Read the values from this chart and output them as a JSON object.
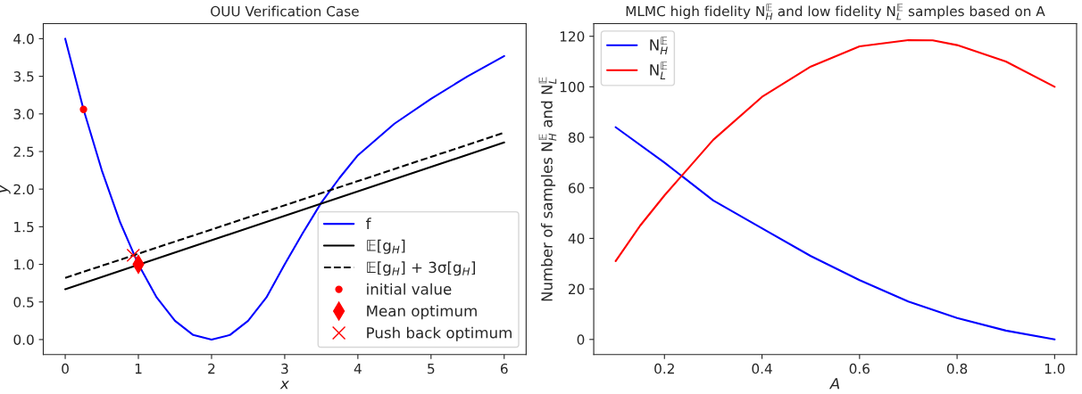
{
  "chart_data": [
    {
      "type": "line",
      "title": "OUU Verification Case",
      "xlabel": "x",
      "ylabel": "y",
      "xlim": [
        -0.3,
        6.3
      ],
      "ylim": [
        -0.2,
        4.2
      ],
      "xticks": [
        0,
        1,
        2,
        3,
        4,
        5,
        6
      ],
      "yticks": [
        {
          "value": 0,
          "label": "0.0"
        },
        0.5,
        {
          "value": 1,
          "label": "1.0"
        },
        1.5,
        {
          "value": 2,
          "label": "2.0"
        },
        2.5,
        {
          "value": 3,
          "label": "3.0"
        },
        3.5,
        {
          "value": 4,
          "label": "4.0"
        }
      ],
      "legend": "bottom right",
      "grid": false,
      "series": [
        {
          "name": "f",
          "color": "#0000ff",
          "line_style": "solid",
          "x": [
            0,
            0.25,
            0.5,
            0.75,
            1,
            1.25,
            1.5,
            1.75,
            2,
            2.25,
            2.5,
            2.75,
            3,
            3.25,
            3.5,
            3.75,
            4,
            4.5,
            5,
            5.5,
            6
          ],
          "values": [
            4,
            3.06,
            2.25,
            1.56,
            1,
            0.56,
            0.25,
            0.06,
            0,
            0.06,
            0.25,
            0.56,
            1.0,
            1.42,
            1.82,
            2.15,
            2.45,
            2.87,
            3.2,
            3.5,
            3.77
          ]
        },
        {
          "name": "𝔼[g$_{H}$]",
          "color": "#000000",
          "line_style": "solid",
          "x": [
            0,
            6
          ],
          "values": [
            0.67,
            2.62
          ]
        },
        {
          "name": "𝔼[g$_{H}$] + 3σ[g$_{H}$]",
          "color": "#000000",
          "line_style": "dashed",
          "x": [
            0,
            6
          ],
          "values": [
            0.82,
            2.75
          ]
        },
        {
          "name": "initial value",
          "color": "#ff0000",
          "type": "scatter",
          "marker": "circle",
          "x": [
            0.25
          ],
          "values": [
            3.06
          ]
        },
        {
          "name": "Mean optimum",
          "color": "#ff0000",
          "type": "scatter",
          "marker": "diamond",
          "x": [
            1.0
          ],
          "values": [
            1.0
          ]
        },
        {
          "name": "Push back optimum",
          "color": "#ff0000",
          "type": "scatter",
          "marker": "cross",
          "x": [
            0.93
          ],
          "values": [
            1.12
          ]
        }
      ]
    },
    {
      "type": "line",
      "title": "MLMC high fidelity N$^{𝔼}$$_{H}$ and low fidelity N$^{𝔼}$$_{L}$ samples based on A",
      "xlabel": "A",
      "ylabel": "Number of samples N$^{𝔼}$$_{H}$ and N$^{𝔼}$$_{L}$",
      "xlim": [
        0.055,
        1.045
      ],
      "ylim": [
        -6,
        125
      ],
      "xticks": [
        0.2,
        0.4,
        0.6,
        0.8,
        {
          "value": 1.0,
          "label": "1.0"
        }
      ],
      "yticks": [
        0,
        20,
        40,
        60,
        80,
        100,
        120
      ],
      "legend": "top left",
      "grid": false,
      "series": [
        {
          "name": "N$^{𝔼}$$_{H}$",
          "color": "#0000ff",
          "line_style": "solid",
          "x": [
            0.1,
            0.2,
            0.3,
            0.4,
            0.5,
            0.6,
            0.7,
            0.8,
            0.9,
            1.0
          ],
          "values": [
            84,
            70,
            55,
            44,
            33,
            23.5,
            15,
            8.5,
            3.5,
            0
          ]
        },
        {
          "name": "N$^{𝔼}$$_{L}$",
          "color": "#ff0000",
          "line_style": "solid",
          "x": [
            0.1,
            0.15,
            0.2,
            0.25,
            0.3,
            0.4,
            0.5,
            0.6,
            0.7,
            0.75,
            0.8,
            0.9,
            1.0
          ],
          "values": [
            31,
            45,
            57,
            68,
            79,
            96,
            108,
            116,
            118.5,
            118.4,
            116.5,
            110,
            100
          ]
        }
      ]
    }
  ]
}
